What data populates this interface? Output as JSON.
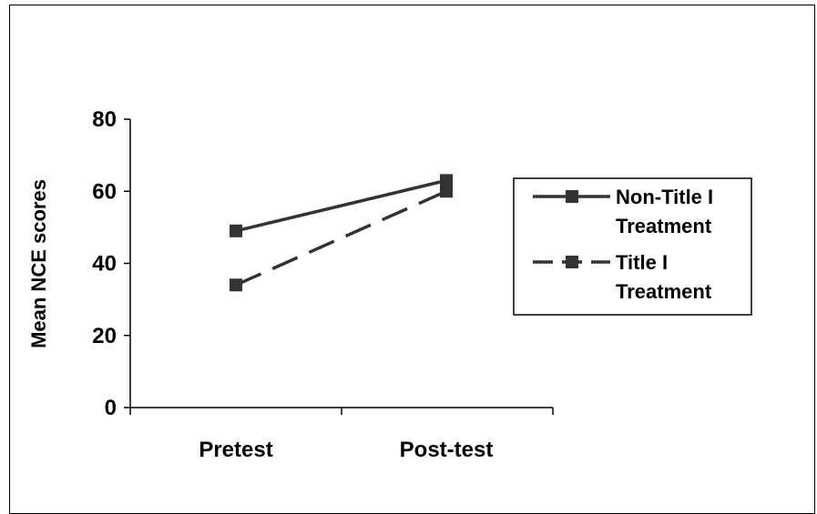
{
  "chart_data": {
    "type": "line",
    "categories": [
      "Pretest",
      "Post-test"
    ],
    "ylabel": "Mean NCE scores",
    "ylim": [
      0,
      80
    ],
    "yticks": [
      0,
      20,
      40,
      60,
      80
    ],
    "grid": false,
    "legend_position": "right",
    "series": [
      {
        "name_lines": [
          "Non-Title I",
          "Treatment"
        ],
        "values": [
          49,
          63
        ],
        "style": "solid",
        "color": "#333333"
      },
      {
        "name_lines": [
          "Title I",
          "Treatment"
        ],
        "values": [
          34,
          60
        ],
        "style": "dashed",
        "color": "#333333"
      }
    ]
  }
}
